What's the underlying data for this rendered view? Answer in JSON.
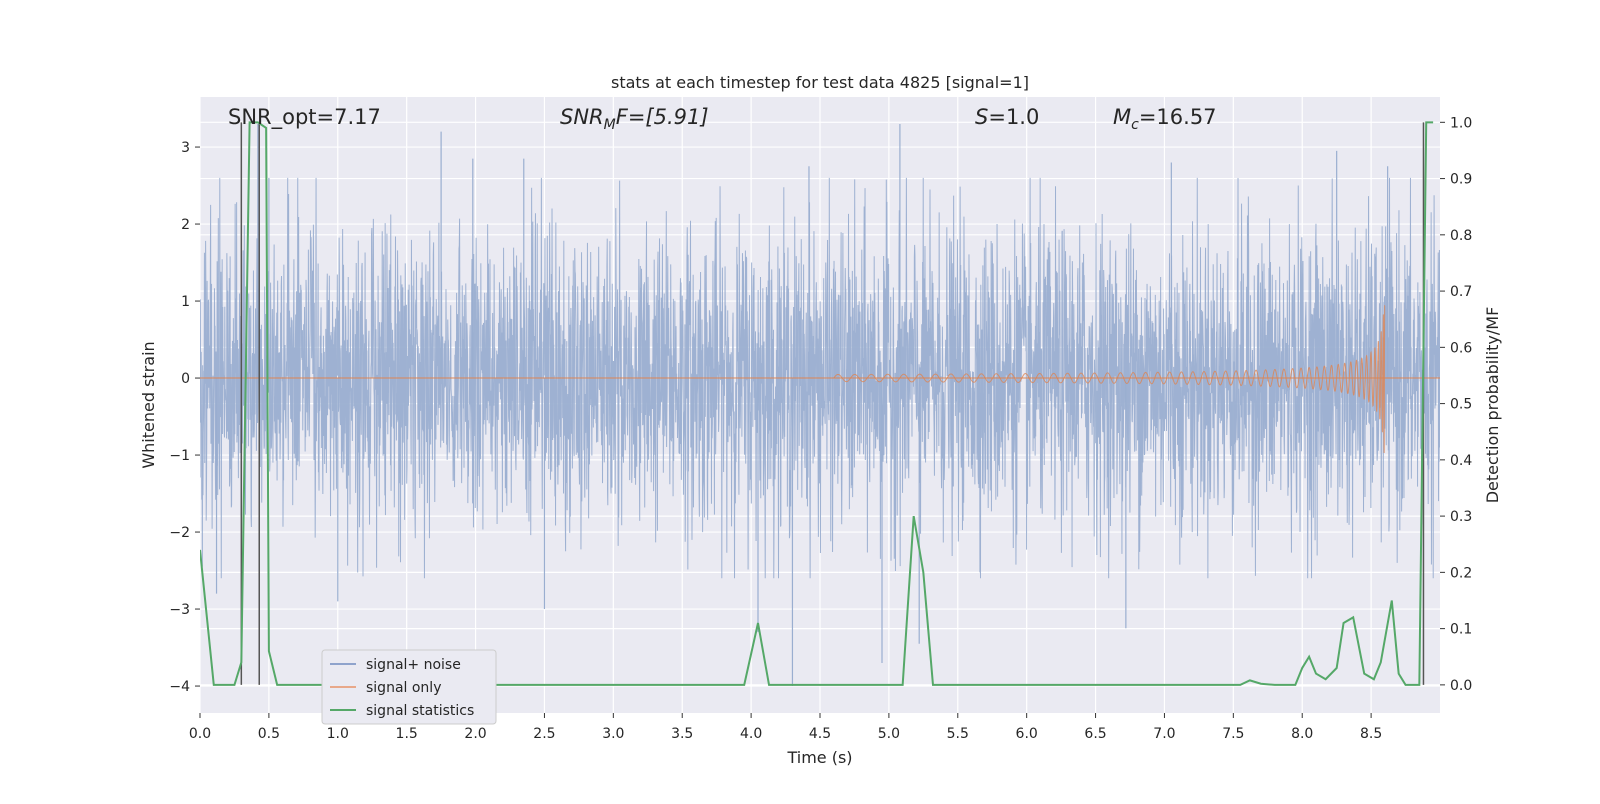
{
  "chart_data": {
    "type": "line",
    "title": "stats at each timestep for test data 4825 [signal=1]",
    "xlabel": "Time (s)",
    "ylabel": "Whitened strain",
    "ylabel_right": "Detection probability/MF",
    "xlim": [
      0.0,
      9.0
    ],
    "ylim": [
      -4.35,
      3.65
    ],
    "ylim_right": [
      -0.05,
      1.045
    ],
    "x_ticks": [
      "0.0",
      "0.5",
      "1.0",
      "1.5",
      "2.0",
      "2.5",
      "3.0",
      "3.5",
      "4.0",
      "4.5",
      "5.0",
      "5.5",
      "6.0",
      "6.5",
      "7.0",
      "7.5",
      "8.0",
      "8.5"
    ],
    "x_tick_values": [
      0.0,
      0.5,
      1.0,
      1.5,
      2.0,
      2.5,
      3.0,
      3.5,
      4.0,
      4.5,
      5.0,
      5.5,
      6.0,
      6.5,
      7.0,
      7.5,
      8.0,
      8.5
    ],
    "y_ticks": [
      "3",
      "2",
      "1",
      "0",
      "−1",
      "−2",
      "−3",
      "−4"
    ],
    "y_tick_values": [
      3,
      2,
      1,
      0,
      -1,
      -2,
      -3,
      -4
    ],
    "y_ticks_right": [
      "1.0",
      "0.9",
      "0.8",
      "0.7",
      "0.6",
      "0.5",
      "0.4",
      "0.3",
      "0.2",
      "0.1",
      "0.0"
    ],
    "y_tick_values_right": [
      1.0,
      0.9,
      0.8,
      0.7,
      0.6,
      0.5,
      0.4,
      0.3,
      0.2,
      0.1,
      0.0
    ],
    "grid": true,
    "annotations": {
      "snr_opt": "SNR_opt=7.17",
      "snr_mf_base": "SNR",
      "snr_mf_sub": "M",
      "snr_mf_rest": "F=[5.91]",
      "s_var": "S",
      "s_rest": "=1.0",
      "mc_base": "M",
      "mc_sub": "c",
      "mc_rest": "=16.57"
    },
    "vertical_lines_x": [
      0.3,
      0.43,
      8.88
    ],
    "legend": {
      "placement": "lower-left",
      "entries": [
        {
          "label": "signal+ noise",
          "color": "#8fa3cc"
        },
        {
          "label": "signal only",
          "color": "#e8a88a"
        },
        {
          "label": "signal statistics",
          "color": "#55a868"
        }
      ]
    },
    "series": [
      {
        "name": "signal+ noise",
        "kind": "noise",
        "color": "#9aaed0",
        "sigma": 0.95,
        "duration": 9.0,
        "spikes": [
          {
            "x": 0.12,
            "y": -2.8
          },
          {
            "x": 0.42,
            "y": 3.3
          },
          {
            "x": 0.5,
            "y": 2.6
          },
          {
            "x": 1.0,
            "y": -2.9
          },
          {
            "x": 1.75,
            "y": 3.2
          },
          {
            "x": 1.98,
            "y": 2.85
          },
          {
            "x": 2.35,
            "y": 2.85
          },
          {
            "x": 2.5,
            "y": -3.0
          },
          {
            "x": 4.05,
            "y": -3.3
          },
          {
            "x": 4.3,
            "y": -4.0
          },
          {
            "x": 4.42,
            "y": 2.75
          },
          {
            "x": 4.95,
            "y": -3.7
          },
          {
            "x": 5.08,
            "y": 3.3
          },
          {
            "x": 5.22,
            "y": -3.45
          },
          {
            "x": 6.72,
            "y": -3.25
          },
          {
            "x": 7.05,
            "y": 2.8
          },
          {
            "x": 8.25,
            "y": 2.95
          },
          {
            "x": 8.62,
            "y": 2.75
          }
        ]
      },
      {
        "name": "signal only",
        "kind": "chirp",
        "color": "#dd8452",
        "start": 4.6,
        "end": 8.6,
        "peak_amplitude": 1.25
      },
      {
        "name": "signal statistics",
        "kind": "line",
        "axis": "right",
        "color": "#55a868",
        "x": [
          0.0,
          0.05,
          0.1,
          0.15,
          0.2,
          0.25,
          0.3,
          0.36,
          0.42,
          0.48,
          0.5,
          0.56,
          0.6,
          1.0,
          2.0,
          3.0,
          3.95,
          4.05,
          4.13,
          4.2,
          4.3,
          4.4,
          5.0,
          5.1,
          5.18,
          5.25,
          5.32,
          5.4,
          5.6,
          6.0,
          7.0,
          7.55,
          7.62,
          7.7,
          7.8,
          7.95,
          8.0,
          8.05,
          8.1,
          8.17,
          8.25,
          8.3,
          8.37,
          8.45,
          8.52,
          8.57,
          8.65,
          8.7,
          8.75,
          8.82,
          8.85,
          8.9,
          8.95
        ],
        "y": [
          0.24,
          0.12,
          0.0,
          0.0,
          0.0,
          0.0,
          0.04,
          1.0,
          1.0,
          0.99,
          0.06,
          0.0,
          0.0,
          0.0,
          0.0,
          0.0,
          0.0,
          0.11,
          0.0,
          0.0,
          0.0,
          0.0,
          0.0,
          0.0,
          0.3,
          0.2,
          0.0,
          0.0,
          0.0,
          0.0,
          0.0,
          0.0,
          0.008,
          0.002,
          0.0,
          0.0,
          0.03,
          0.05,
          0.02,
          0.01,
          0.03,
          0.11,
          0.12,
          0.02,
          0.01,
          0.04,
          0.15,
          0.02,
          0.0,
          0.0,
          0.0,
          1.0,
          1.0
        ]
      }
    ]
  }
}
